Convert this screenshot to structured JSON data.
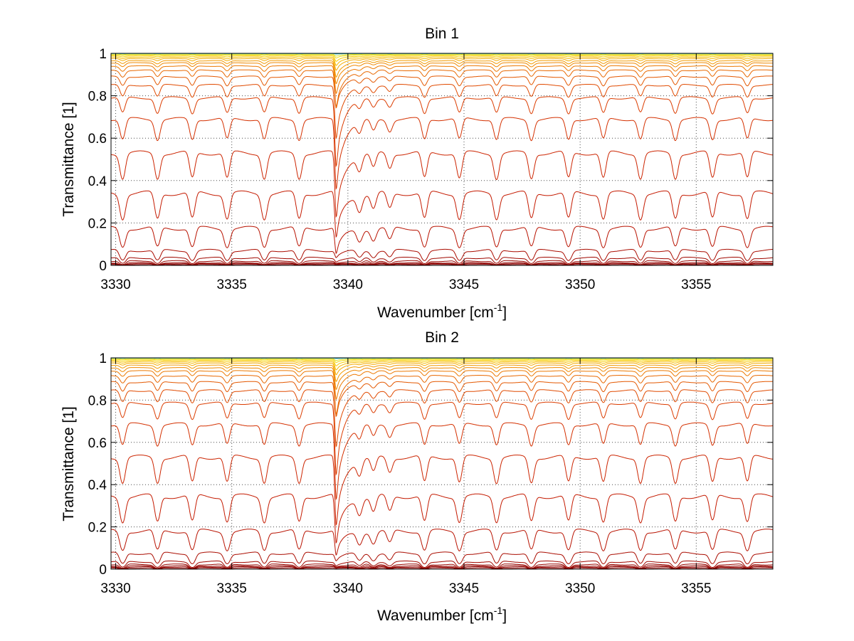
{
  "chart_data": [
    {
      "type": "line",
      "title": "Bin 1",
      "xlabel": "Wavenumber [cm",
      "xlabel_sup": "-1",
      "xlabel_end": "]",
      "ylabel": "Transmittance [1]",
      "xlim": [
        3329.8,
        3358.3
      ],
      "ylim": [
        0,
        1
      ],
      "xticks": [
        3330,
        3335,
        3340,
        3345,
        3350,
        3355
      ],
      "yticks": [
        0,
        0.2,
        0.4,
        0.6,
        0.8,
        1
      ],
      "xtick_labels": [
        "3330",
        "3335",
        "3340",
        "3345",
        "3350",
        "3355"
      ],
      "ytick_labels": [
        "0",
        "0.2",
        "0.4",
        "0.6",
        "0.8",
        "1"
      ],
      "grid": true,
      "main_dip": {
        "x": 3339.5,
        "min_y_of_lowest_curves": [
          0.05,
          0.12,
          0.22,
          0.36,
          0.47,
          0.6,
          0.74
        ]
      },
      "line_dips_x": [
        3330.3,
        3331.8,
        3333.3,
        3334.8,
        3336.4,
        3337.9,
        3340.5,
        3341.1,
        3341.8,
        3343.3,
        3344.8,
        3346.4,
        3347.9,
        3349.5,
        3351.0,
        3352.6,
        3354.1,
        3355.7,
        3357.2
      ],
      "series_baseline_y": [
        0.004,
        0.008,
        0.012,
        0.02,
        0.035,
        0.07,
        0.175,
        0.34,
        0.53,
        0.69,
        0.79,
        0.85,
        0.89,
        0.92,
        0.94,
        0.955,
        0.965,
        0.975,
        0.982,
        0.988,
        0.993,
        0.996,
        0.999
      ],
      "colors": [
        "#8b0000",
        "#8e0000",
        "#930400",
        "#990600",
        "#a00800",
        "#aa0c00",
        "#b81200",
        "#c41a00",
        "#cc2400",
        "#d43000",
        "#db3c00",
        "#e04a00",
        "#e45800",
        "#e86800",
        "#ec7800",
        "#ef8800",
        "#f29a00",
        "#f4ab00",
        "#f6bc00",
        "#f8cd00",
        "#f2dc10",
        "#d9e030",
        "#20c0d0"
      ]
    },
    {
      "type": "line",
      "title": "Bin 2",
      "xlabel": "Wavenumber [cm",
      "xlabel_sup": "-1",
      "xlabel_end": "]",
      "ylabel": "Transmittance [1]",
      "xlim": [
        3329.8,
        3358.3
      ],
      "ylim": [
        0,
        1
      ],
      "xticks": [
        3330,
        3335,
        3340,
        3345,
        3350,
        3355
      ],
      "yticks": [
        0,
        0.2,
        0.4,
        0.6,
        0.8,
        1
      ],
      "xtick_labels": [
        "3330",
        "3335",
        "3340",
        "3345",
        "3350",
        "3355"
      ],
      "ytick_labels": [
        "0",
        "0.2",
        "0.4",
        "0.6",
        "0.8",
        "1"
      ],
      "grid": true,
      "main_dip": {
        "x": 3339.5,
        "min_y_of_lowest_curves": [
          0.06,
          0.11,
          0.2,
          0.33,
          0.45,
          0.58,
          0.72
        ]
      },
      "line_dips_x": [
        3330.3,
        3331.8,
        3333.3,
        3334.8,
        3336.4,
        3337.9,
        3340.5,
        3341.1,
        3341.8,
        3343.3,
        3344.8,
        3346.4,
        3347.9,
        3349.5,
        3351.0,
        3352.6,
        3354.1,
        3355.7,
        3357.2
      ],
      "series_baseline_y": [
        0.005,
        0.01,
        0.015,
        0.022,
        0.035,
        0.075,
        0.18,
        0.345,
        0.53,
        0.685,
        0.785,
        0.845,
        0.885,
        0.915,
        0.938,
        0.953,
        0.965,
        0.975,
        0.982,
        0.988,
        0.993,
        0.996,
        0.999
      ],
      "colors": [
        "#8b0000",
        "#8e0000",
        "#930400",
        "#990600",
        "#a00800",
        "#aa0c00",
        "#b81200",
        "#c41a00",
        "#cc2400",
        "#d43000",
        "#db3c00",
        "#e04a00",
        "#e45800",
        "#e86800",
        "#ec7800",
        "#ef8800",
        "#f29a00",
        "#f4ab00",
        "#f6bc00",
        "#f8cd00",
        "#f2dc10",
        "#d9e030",
        "#20c0d0"
      ]
    }
  ]
}
